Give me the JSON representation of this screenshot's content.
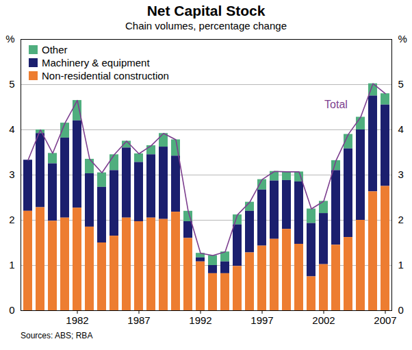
{
  "chart_data": {
    "type": "bar",
    "title": "Net Capital Stock",
    "subtitle": "Chain volumes, percentage change",
    "source": "Sources: ABS; RBA",
    "stacked": true,
    "grid": true,
    "legend": "top-left",
    "x": [
      1978,
      1979,
      1980,
      1981,
      1982,
      1983,
      1984,
      1985,
      1986,
      1987,
      1988,
      1989,
      1990,
      1991,
      1992,
      1993,
      1994,
      1995,
      1996,
      1997,
      1998,
      1999,
      2000,
      2001,
      2002,
      2003,
      2004,
      2005,
      2006,
      2007
    ],
    "xticks": [
      1982,
      1987,
      1992,
      1997,
      2002,
      2007
    ],
    "ylim": [
      0,
      6
    ],
    "yticks": [
      0,
      1,
      2,
      3,
      4,
      5,
      {
        "value": 6,
        "label": "%"
      }
    ],
    "series": [
      {
        "name": "Other",
        "type": "bar",
        "color": "#4fae7e",
        "values": [
          0.0,
          0.08,
          0.23,
          0.33,
          0.45,
          0.32,
          0.32,
          0.35,
          0.15,
          0.19,
          0.2,
          0.3,
          0.36,
          0.23,
          0.1,
          0.22,
          0.22,
          0.22,
          0.2,
          0.23,
          0.21,
          0.19,
          0.22,
          0.32,
          0.27,
          0.22,
          0.32,
          0.28,
          0.27,
          0.25
        ]
      },
      {
        "name": "Machinery & equipment",
        "type": "bar",
        "color": "#1b1f6e",
        "values": [
          1.13,
          1.64,
          1.27,
          1.77,
          1.93,
          1.18,
          1.23,
          1.45,
          1.55,
          1.31,
          1.4,
          1.6,
          1.24,
          0.37,
          0.09,
          0.18,
          0.26,
          0.92,
          0.92,
          1.24,
          1.29,
          1.08,
          1.38,
          1.18,
          1.13,
          1.65,
          1.96,
          2.0,
          2.12,
          1.8
        ]
      },
      {
        "name": "Non-residential construction",
        "type": "bar",
        "color": "#ed7d31",
        "values": [
          2.2,
          2.28,
          1.98,
          2.05,
          2.27,
          1.85,
          1.5,
          1.65,
          2.05,
          1.97,
          2.05,
          2.02,
          2.18,
          1.6,
          1.08,
          0.82,
          0.82,
          0.98,
          1.28,
          1.43,
          1.58,
          1.8,
          1.47,
          0.75,
          1.02,
          1.45,
          1.62,
          2.0,
          2.63,
          2.75
        ]
      },
      {
        "name": "Total",
        "type": "line",
        "color": "#7d3f8f",
        "values": [
          3.33,
          4.0,
          3.48,
          4.15,
          4.65,
          3.35,
          3.05,
          3.45,
          3.75,
          3.47,
          3.65,
          3.92,
          3.78,
          2.2,
          1.27,
          1.22,
          1.3,
          2.12,
          2.4,
          2.9,
          3.08,
          3.07,
          3.07,
          2.25,
          2.42,
          3.32,
          3.9,
          4.28,
          5.02,
          4.8
        ]
      }
    ],
    "annotations": [
      {
        "text": "Total",
        "x": 2003,
        "y": 4.55,
        "color": "#7d3f8f"
      }
    ]
  }
}
